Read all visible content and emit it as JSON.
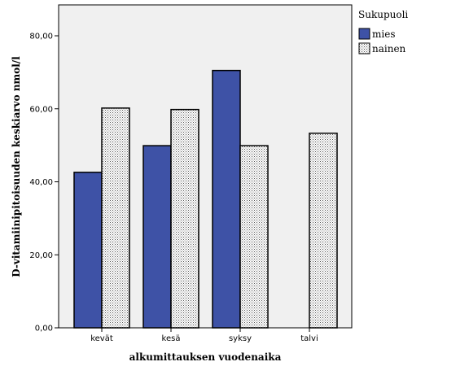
{
  "chart_data": {
    "type": "bar",
    "categories": [
      "kevät",
      "kesä",
      "syksy",
      "talvi"
    ],
    "series": [
      {
        "name": "mies",
        "values": [
          42.6,
          49.9,
          70.5,
          null
        ],
        "color": "#3e52a6"
      },
      {
        "name": "nainen",
        "values": [
          60.2,
          59.8,
          49.9,
          53.3
        ],
        "color": "#ffffff",
        "pattern": "dotted"
      }
    ],
    "xlabel": "alkumittauksen vuodenaika",
    "ylabel": "D-vitamiinipitoisuuden keskiarvo nmol/l",
    "ylim": [
      0,
      80
    ],
    "yticks": [
      "0,00",
      "20,00",
      "40,00",
      "60,00",
      "80,00"
    ],
    "legend": {
      "title": "Sukupuoli",
      "position": "right"
    },
    "plot_background": "#f0f0f0",
    "grid": false
  }
}
